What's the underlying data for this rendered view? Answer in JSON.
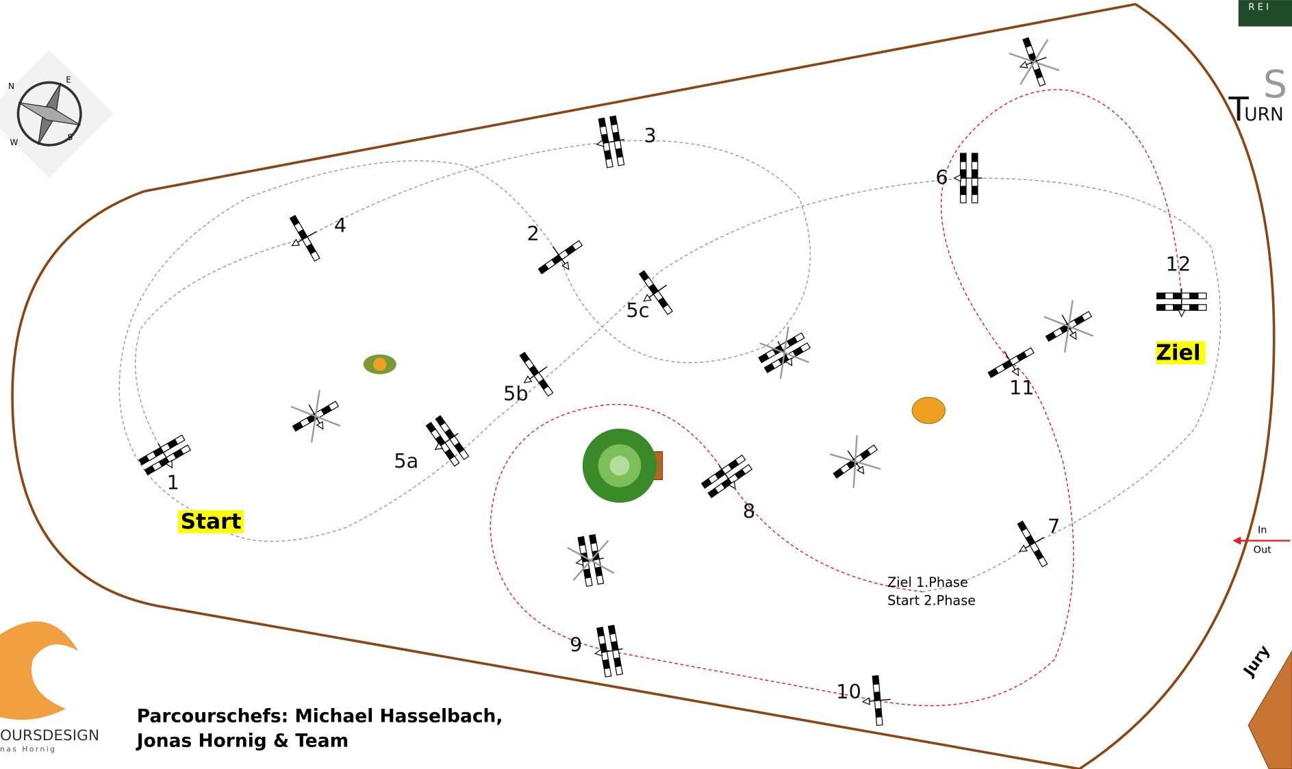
{
  "logos": {
    "top_right": "R E I",
    "turnier": "S",
    "turnier_sub": "URN",
    "designer": "OURSDESIGN",
    "designer_sub": "nas Hornig"
  },
  "compass": {
    "n": "N",
    "e": "E",
    "s": "S",
    "w": "W"
  },
  "jumps": [
    {
      "number": "1"
    },
    {
      "number": "2"
    },
    {
      "number": "3"
    },
    {
      "number": "4"
    },
    {
      "number": "5a"
    },
    {
      "number": "5b"
    },
    {
      "number": "5c"
    },
    {
      "number": "6"
    },
    {
      "number": "7"
    },
    {
      "number": "8"
    },
    {
      "number": "9"
    },
    {
      "number": "10"
    },
    {
      "number": "11"
    },
    {
      "number": "12"
    }
  ],
  "start": "Start",
  "finish": "Ziel",
  "phase_labels": [
    "Ziel 1.Phase",
    "Start 2.Phase"
  ],
  "entrance": {
    "in": "In",
    "out": "Out"
  },
  "jury": "Jury",
  "credits": [
    "Parcourschefs: Michael Hasselbach,",
    "Jonas Hornig & Team"
  ]
}
